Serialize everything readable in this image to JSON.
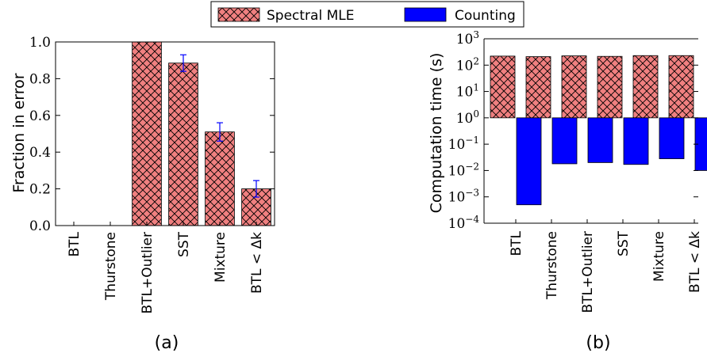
{
  "legend": {
    "items": [
      {
        "label": "Spectral MLE",
        "color": "#f08080",
        "pattern": "crosshatch"
      },
      {
        "label": "Counting",
        "color": "#0000ff",
        "pattern": "solid"
      }
    ]
  },
  "chart_data": [
    {
      "type": "bar",
      "caption": "(a)",
      "ylabel": "Fraction in error",
      "ylim": [
        0.0,
        1.0
      ],
      "yticks": [
        "0.0",
        "0.2",
        "0.4",
        "0.6",
        "0.8",
        "1.0"
      ],
      "categories": [
        "BTL",
        "Thurstone",
        "BTL+Outlier",
        "SST",
        "Mixture",
        "BTL < Δk"
      ],
      "series": [
        {
          "name": "Spectral MLE",
          "values": [
            0.0,
            0.0,
            1.0,
            0.885,
            0.51,
            0.2
          ],
          "errors": [
            0.0,
            0.0,
            0.0,
            0.045,
            0.05,
            0.045
          ]
        }
      ]
    },
    {
      "type": "bar",
      "caption": "(b)",
      "ylabel": "Computation time (s)",
      "yscale": "log",
      "ylim": [
        0.0001,
        1000
      ],
      "yticks": [
        "10^-4",
        "10^-3",
        "10^-2",
        "10^-1",
        "10^0",
        "10^1",
        "10^2",
        "10^3"
      ],
      "baseline": 1,
      "categories": [
        "BTL",
        "Thurstone",
        "BTL+Outlier",
        "SST",
        "Mixture",
        "BTL < Δk"
      ],
      "series": [
        {
          "name": "Spectral MLE",
          "values": [
            220,
            210,
            225,
            215,
            230,
            230
          ]
        },
        {
          "name": "Counting",
          "values": [
            0.0005,
            0.018,
            0.02,
            0.017,
            0.028,
            0.01
          ]
        }
      ]
    }
  ]
}
